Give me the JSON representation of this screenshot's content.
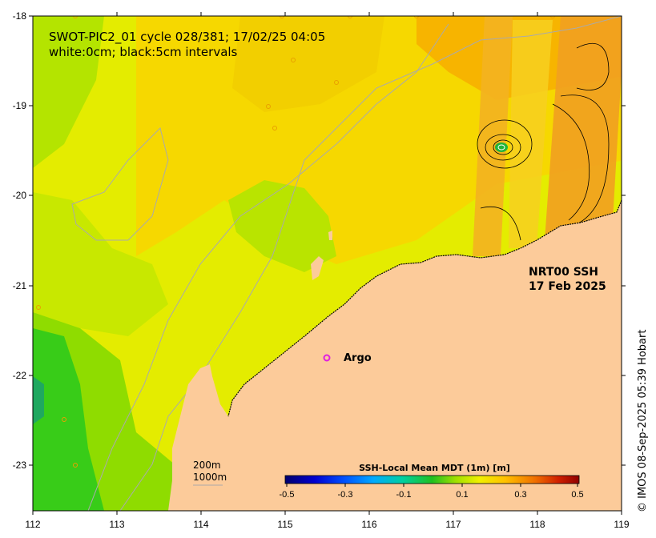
{
  "map": {
    "title_line1": "SWOT-PIC2_01 cycle 028/381; 17/02/25 04:05",
    "title_line2": "white:0cm; black:5cm intervals",
    "product_line1": "NRT00 SSH",
    "product_line2": "17 Feb 2025",
    "argo_label": "Argo",
    "depth_label1": "200m",
    "depth_label2": "1000m",
    "copyright": "© IMOS 08-Sep-2025 05:39 Hobart",
    "x_ticks": [
      "112",
      "113",
      "114",
      "115",
      "116",
      "117",
      "118",
      "119"
    ],
    "y_ticks": [
      "-18",
      "-19",
      "-20",
      "-21",
      "-22",
      "-23"
    ],
    "land_color": "#fccb9a"
  },
  "colorbar": {
    "title": "SSH-Local Mean MDT (1m) [m]",
    "ticks": [
      "-0.5",
      "-0.3",
      "-0.1",
      "0.1",
      "0.3",
      "0.5"
    ]
  }
}
